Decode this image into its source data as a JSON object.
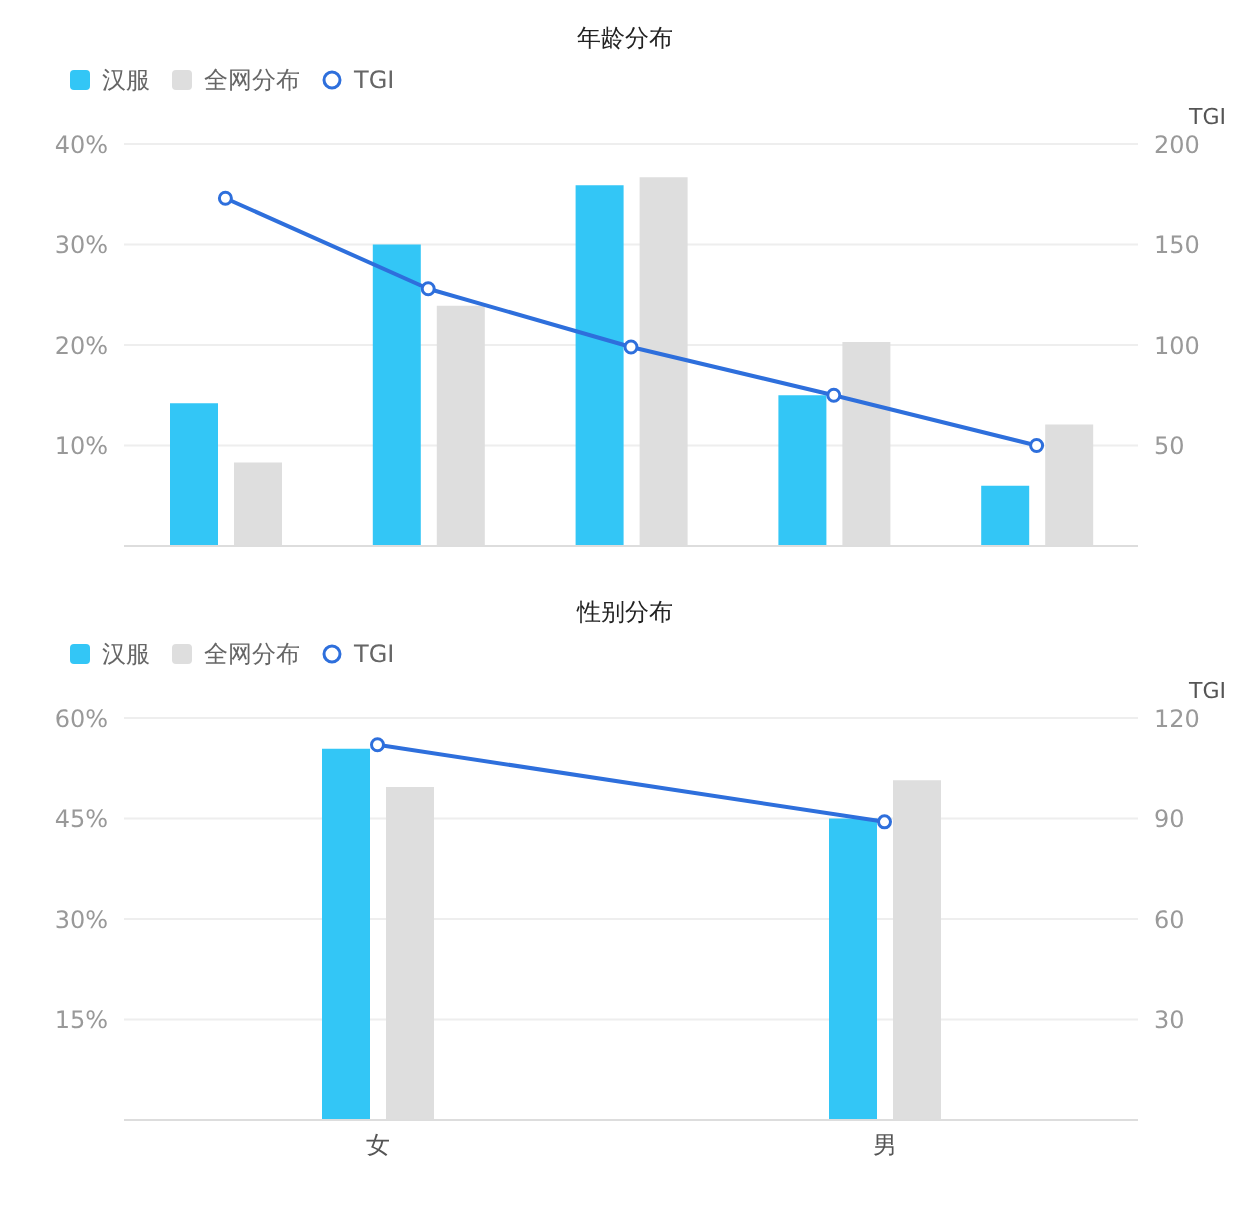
{
  "chart_data": [
    {
      "type": "bar",
      "title": "年龄分布",
      "categories": [
        null,
        null,
        null,
        null,
        null
      ],
      "y2label": "TGI",
      "legend": "top left",
      "grid": "y",
      "ylim": [
        0,
        40
      ],
      "yticks": [
        {
          "value": 10,
          "label": "10%"
        },
        {
          "value": 20,
          "label": "20%"
        },
        {
          "value": 30,
          "label": "30%"
        },
        {
          "value": 40,
          "label": "40%"
        }
      ],
      "y2lim": [
        0,
        200
      ],
      "y2ticks": [
        50,
        100,
        150,
        200
      ],
      "series": [
        {
          "name": "汉服",
          "color": "#33c6f6",
          "values": [
            14.2,
            30,
            35.9,
            15,
            6
          ]
        },
        {
          "name": "全网分布",
          "color": "#dedede",
          "values": [
            8.3,
            23.9,
            36.7,
            20.3,
            12.1
          ]
        },
        {
          "name": "TGI",
          "type": "line",
          "axis": "y2",
          "color": "#2e6fdc",
          "marker": "circle",
          "values": [
            173,
            128,
            99,
            75,
            50
          ]
        }
      ]
    },
    {
      "type": "bar",
      "title": "性别分布",
      "categories": [
        "女",
        "男"
      ],
      "y2label": "TGI",
      "legend": "top left",
      "grid": "y",
      "ylim": [
        0,
        60
      ],
      "yticks": [
        {
          "value": 15,
          "label": "15%"
        },
        {
          "value": 30,
          "label": "30%"
        },
        {
          "value": 45,
          "label": "45%"
        },
        {
          "value": 60,
          "label": "60%"
        }
      ],
      "y2lim": [
        0,
        120
      ],
      "y2ticks": [
        30,
        60,
        90,
        120
      ],
      "series": [
        {
          "name": "汉服",
          "color": "#33c6f6",
          "values": [
            55.4,
            45
          ]
        },
        {
          "name": "全网分布",
          "color": "#dedede",
          "values": [
            49.7,
            50.7
          ]
        },
        {
          "name": "TGI",
          "type": "line",
          "axis": "y2",
          "color": "#2e6fdc",
          "marker": "circle",
          "values": [
            112,
            89
          ]
        }
      ]
    }
  ]
}
